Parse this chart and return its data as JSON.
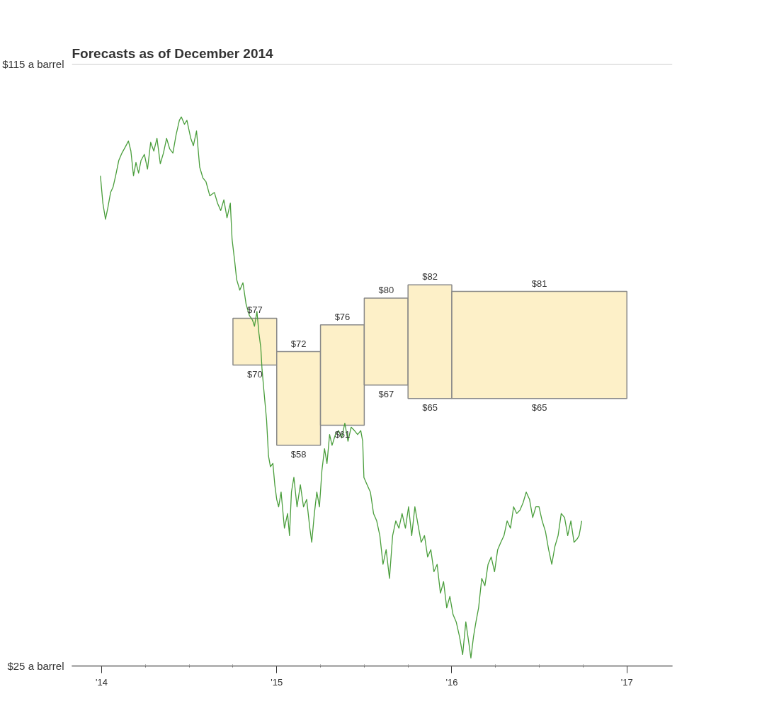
{
  "chart_data": {
    "type": "line",
    "title": "Forecasts as of December 2014",
    "xlim": [
      2013.83,
      2017.26
    ],
    "ylim": [
      25,
      115
    ],
    "xticks": [
      {
        "value": 2014,
        "label": "'14"
      },
      {
        "value": 2015,
        "label": "'15"
      },
      {
        "value": 2016,
        "label": "'16"
      },
      {
        "value": 2017,
        "label": "'17"
      }
    ],
    "yticks": [
      {
        "value": 115,
        "label": "$115 a barrel"
      },
      {
        "value": 25,
        "label": "$25 a barrel"
      }
    ],
    "grid": "y",
    "series": [
      {
        "type": "bar",
        "color": "#fdf0c8",
        "x": [
          2014.875,
          2015.125,
          2015.375,
          2015.625,
          2015.875,
          2016.5
        ],
        "base": [
          70,
          58,
          61,
          67,
          65,
          65
        ],
        "values": [
          7,
          14,
          15,
          13,
          17,
          16
        ]
      },
      {
        "color": "#4a9e3c",
        "x": [
          2013.993,
          2014.007,
          2014.022,
          2014.036,
          2014.051,
          2014.065,
          2014.08,
          2014.098,
          2014.116,
          2014.135,
          2014.153,
          2014.167,
          2014.182,
          2014.196,
          2014.211,
          2014.225,
          2014.244,
          2014.262,
          2014.28,
          2014.298,
          2014.316,
          2014.335,
          2014.353,
          2014.371,
          2014.389,
          2014.407,
          2014.425,
          2014.444,
          2014.455,
          2014.473,
          2014.487,
          2014.509,
          2014.524,
          2014.542,
          2014.56,
          2014.578,
          2014.596,
          2014.618,
          2014.644,
          2014.662,
          2014.68,
          2014.698,
          2014.716,
          2014.735,
          2014.745,
          2014.76,
          2014.771,
          2014.789,
          2014.807,
          2014.825,
          2014.844,
          2014.862,
          2014.873,
          2014.887,
          2014.898,
          2014.909,
          2014.916,
          2014.927,
          2014.942,
          2014.953,
          2014.964,
          2014.978,
          2014.989,
          2015.0,
          2015.011,
          2015.025,
          2015.044,
          2015.062,
          2015.073,
          2015.084,
          2015.098,
          2015.116,
          2015.135,
          2015.153,
          2015.171,
          2015.189,
          2015.2,
          2015.215,
          2015.229,
          2015.244,
          2015.258,
          2015.273,
          2015.287,
          2015.302,
          2015.316,
          2015.335,
          2015.353,
          2015.371,
          2015.389,
          2015.407,
          2015.425,
          2015.444,
          2015.462,
          2015.48,
          2015.491,
          2015.498,
          2015.516,
          2015.535,
          2015.553,
          2015.571,
          2015.589,
          2015.607,
          2015.625,
          2015.644,
          2015.662,
          2015.68,
          2015.698,
          2015.716,
          2015.735,
          2015.753,
          2015.771,
          2015.789,
          2015.807,
          2015.825,
          2015.844,
          2015.862,
          2015.88,
          2015.898,
          2015.916,
          2015.935,
          2015.953,
          2015.971,
          2015.989,
          2016.007,
          2016.025,
          2016.044,
          2016.062,
          2016.08,
          2016.098,
          2016.109,
          2016.124,
          2016.138,
          2016.153,
          2016.171,
          2016.189,
          2016.207,
          2016.225,
          2016.244,
          2016.262,
          2016.28,
          2016.298,
          2016.316,
          2016.335,
          2016.353,
          2016.371,
          2016.389,
          2016.407,
          2016.425,
          2016.444,
          2016.462,
          2016.48,
          2016.498,
          2016.516,
          2016.535,
          2016.553,
          2016.571,
          2016.589,
          2016.607,
          2016.625,
          2016.644,
          2016.662,
          2016.68,
          2016.698,
          2016.716,
          2016.727,
          2016.742
        ],
        "values": [
          98.3,
          94.2,
          91.8,
          93.6,
          95.8,
          96.6,
          98.3,
          100.6,
          101.7,
          102.6,
          103.5,
          102.0,
          98.3,
          100.3,
          98.7,
          100.6,
          101.5,
          99.3,
          103.3,
          102.0,
          103.9,
          100.1,
          101.7,
          103.9,
          102.3,
          101.7,
          104.4,
          106.6,
          107.1,
          106.0,
          106.6,
          103.9,
          102.8,
          105.0,
          99.6,
          98.0,
          97.4,
          95.3,
          95.8,
          94.2,
          93.1,
          94.7,
          92.0,
          94.2,
          88.8,
          85.5,
          82.8,
          81.2,
          82.3,
          79.1,
          77.4,
          76.7,
          75.8,
          78.0,
          74.8,
          72.6,
          69.4,
          66.1,
          61.8,
          56.4,
          54.8,
          55.3,
          52.1,
          49.9,
          48.8,
          51.0,
          45.6,
          47.8,
          44.5,
          51.0,
          53.2,
          48.8,
          52.1,
          48.8,
          49.9,
          45.6,
          43.5,
          47.8,
          51.0,
          48.8,
          54.2,
          57.5,
          55.3,
          59.6,
          58.0,
          59.6,
          60.2,
          59.1,
          61.3,
          58.6,
          60.7,
          60.2,
          59.6,
          60.2,
          58.6,
          53.2,
          52.1,
          51.0,
          47.8,
          46.7,
          44.5,
          40.2,
          42.4,
          38.1,
          44.5,
          46.7,
          45.6,
          47.8,
          45.6,
          48.8,
          44.5,
          48.8,
          46.1,
          43.5,
          44.5,
          41.3,
          42.4,
          39.1,
          40.2,
          35.9,
          37.6,
          33.7,
          35.4,
          32.7,
          31.6,
          29.4,
          26.7,
          31.6,
          28.3,
          26.2,
          29.4,
          31.6,
          33.7,
          38.1,
          37.0,
          40.2,
          41.3,
          39.1,
          42.4,
          43.5,
          44.5,
          46.7,
          45.6,
          48.8,
          47.8,
          48.3,
          49.4,
          51.0,
          49.9,
          47.2,
          48.8,
          48.8,
          46.7,
          45.1,
          42.4,
          40.2,
          42.9,
          44.5,
          47.8,
          47.2,
          44.5,
          46.7,
          43.5,
          44.0,
          44.5,
          46.7
        ]
      }
    ],
    "annotations": [
      {
        "text": "$77",
        "x": 2014.875,
        "y": 77
      },
      {
        "text": "$70",
        "x": 2014.875,
        "y": 70
      },
      {
        "text": "$72",
        "x": 2015.125,
        "y": 72
      },
      {
        "text": "$58",
        "x": 2015.125,
        "y": 58
      },
      {
        "text": "$76",
        "x": 2015.375,
        "y": 76
      },
      {
        "text": "$61",
        "x": 2015.375,
        "y": 61
      },
      {
        "text": "$80",
        "x": 2015.625,
        "y": 80
      },
      {
        "text": "$67",
        "x": 2015.625,
        "y": 67
      },
      {
        "text": "$82",
        "x": 2015.875,
        "y": 82
      },
      {
        "text": "$65",
        "x": 2015.875,
        "y": 65
      },
      {
        "text": "$81",
        "x": 2016.5,
        "y": 81
      },
      {
        "text": "$65",
        "x": 2016.5,
        "y": 65
      }
    ]
  }
}
